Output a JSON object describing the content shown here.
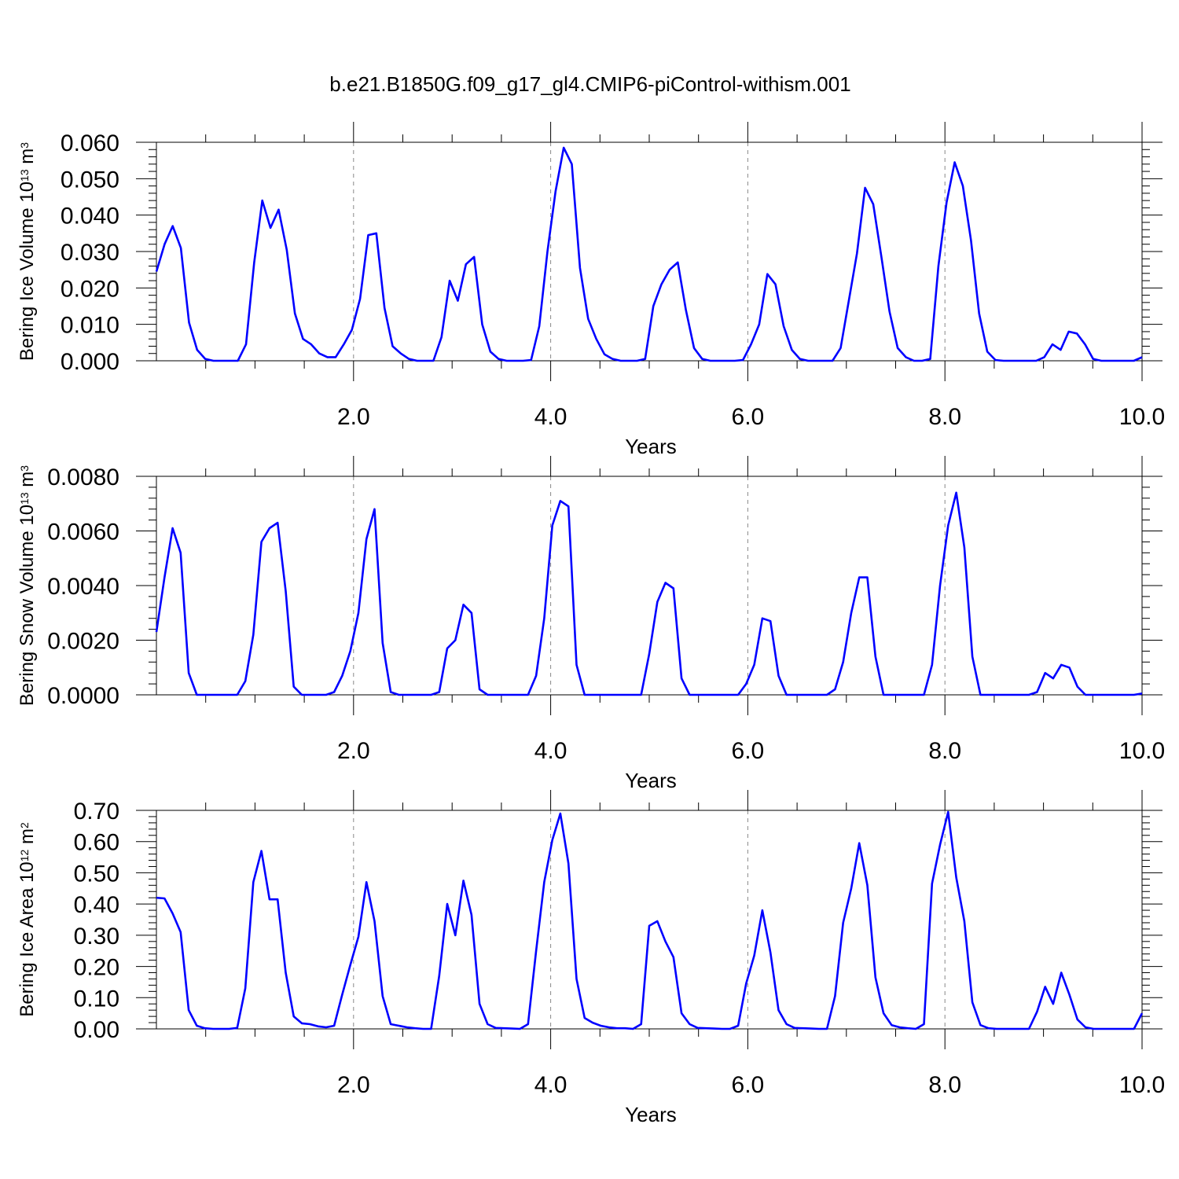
{
  "figure": {
    "title": "b.e21.B1850G.f09_g17_gl4.CMIP6-piControl-withism.001"
  },
  "colors": {
    "series": "#0000ff",
    "axis": "#000000",
    "gridline": "#888888"
  },
  "chart_data": [
    {
      "type": "line",
      "title": "",
      "xlabel": "Years",
      "ylabel": {
        "prefix": "Bering Ice Volume 10",
        "exp": "13",
        "unit": " m",
        "unit_exp": "3"
      },
      "xlim": [
        0.0,
        10.0
      ],
      "ylim": [
        0.0,
        0.06
      ],
      "xticks": [
        2.0,
        4.0,
        6.0,
        8.0,
        10.0
      ],
      "xtick_labels": [
        "2.0",
        "4.0",
        "6.0",
        "8.0",
        "10.0"
      ],
      "yticks": [
        0.0,
        0.01,
        0.02,
        0.03,
        0.04,
        0.05,
        0.06
      ],
      "ytick_labels": [
        "0.000",
        "0.010",
        "0.020",
        "0.030",
        "0.040",
        "0.050",
        "0.060"
      ],
      "grid_x": [
        2.0,
        4.0,
        6.0,
        8.0
      ],
      "series": [
        {
          "values": [
            0.0245,
            0.032,
            0.037,
            0.031,
            0.0105,
            0.003,
            0.0005,
            0.0,
            0.0,
            0.0,
            0.0,
            0.0045,
            0.027,
            0.044,
            0.0365,
            0.0415,
            0.0305,
            0.013,
            0.006,
            0.0045,
            0.002,
            0.001,
            0.001,
            0.0045,
            0.0085,
            0.017,
            0.0345,
            0.035,
            0.0145,
            0.004,
            0.002,
            0.0005,
            0.0,
            0.0,
            0.0,
            0.0065,
            0.022,
            0.0165,
            0.0265,
            0.0285,
            0.01,
            0.0025,
            0.0005,
            0.0,
            0.0,
            0.0,
            0.0002,
            0.0095,
            0.03,
            0.0465,
            0.0585,
            0.054,
            0.0255,
            0.0115,
            0.006,
            0.0018,
            0.0005,
            0.0,
            0.0,
            0.0,
            0.0005,
            0.015,
            0.021,
            0.025,
            0.027,
            0.014,
            0.0035,
            0.0005,
            0.0,
            0.0,
            0.0,
            0.0,
            0.0002,
            0.0045,
            0.01,
            0.0238,
            0.021,
            0.0095,
            0.003,
            0.0005,
            0.0,
            0.0,
            0.0,
            0.0,
            0.0035,
            0.0165,
            0.0295,
            0.0475,
            0.043,
            0.0285,
            0.0135,
            0.0035,
            0.001,
            0.0,
            0.0,
            0.0005,
            0.026,
            0.0435,
            0.0545,
            0.048,
            0.033,
            0.013,
            0.0025,
            0.0002,
            0.0,
            0.0,
            0.0,
            0.0,
            0.0,
            0.001,
            0.0045,
            0.003,
            0.008,
            0.0075,
            0.0045,
            0.0005,
            0.0,
            0.0,
            0.0,
            0.0,
            0.0,
            0.001
          ]
        }
      ]
    },
    {
      "type": "line",
      "title": "",
      "xlabel": "Years",
      "ylabel": {
        "prefix": "Bering Snow Volume 10",
        "exp": "13",
        "unit": " m",
        "unit_exp": "3"
      },
      "xlim": [
        0.0,
        10.0
      ],
      "ylim": [
        0.0,
        0.008
      ],
      "xticks": [
        2.0,
        4.0,
        6.0,
        8.0,
        10.0
      ],
      "xtick_labels": [
        "2.0",
        "4.0",
        "6.0",
        "8.0",
        "10.0"
      ],
      "yticks": [
        0.0,
        0.002,
        0.004,
        0.006,
        0.008
      ],
      "ytick_labels": [
        "0.0000",
        "0.0020",
        "0.0040",
        "0.0060",
        "0.0080"
      ],
      "grid_x": [
        2.0,
        4.0,
        6.0,
        8.0
      ],
      "series": [
        {
          "values": [
            0.0023,
            0.0043,
            0.0061,
            0.0052,
            0.0008,
            0.0,
            0.0,
            0.0,
            0.0,
            0.0,
            0.0,
            0.0005,
            0.0022,
            0.0056,
            0.0061,
            0.0063,
            0.0038,
            0.0003,
            0.0,
            0.0,
            0.0,
            0.0,
            0.0001,
            0.0007,
            0.0016,
            0.003,
            0.0057,
            0.0068,
            0.0019,
            0.0001,
            0.0,
            0.0,
            0.0,
            0.0,
            0.0,
            0.0001,
            0.0017,
            0.002,
            0.0033,
            0.003,
            0.0002,
            0.0,
            0.0,
            0.0,
            0.0,
            0.0,
            0.0,
            0.0007,
            0.0028,
            0.0062,
            0.0071,
            0.0069,
            0.0011,
            0.0,
            0.0,
            0.0,
            0.0,
            0.0,
            0.0,
            0.0,
            0.0,
            0.0015,
            0.0034,
            0.0041,
            0.0039,
            0.0006,
            0.0,
            0.0,
            0.0,
            0.0,
            0.0,
            0.0,
            0.0,
            0.0004,
            0.0011,
            0.0028,
            0.0027,
            0.0007,
            0.0,
            0.0,
            0.0,
            0.0,
            0.0,
            0.0,
            0.0002,
            0.0012,
            0.003,
            0.0043,
            0.0043,
            0.0014,
            0.0,
            0.0,
            0.0,
            0.0,
            0.0,
            0.0,
            0.0011,
            0.004,
            0.0062,
            0.0074,
            0.0054,
            0.0014,
            0.0,
            0.0,
            0.0,
            0.0,
            0.0,
            0.0,
            0.0,
            0.0001,
            0.0008,
            0.0006,
            0.0011,
            0.001,
            0.0003,
            0.0,
            0.0,
            0.0,
            0.0,
            0.0,
            0.0,
            0.0,
            5e-05
          ]
        }
      ]
    },
    {
      "type": "line",
      "title": "",
      "xlabel": "Years",
      "ylabel": {
        "prefix": "Bering Ice Area 10",
        "exp": "12",
        "unit": " m",
        "unit_exp": "2"
      },
      "xlim": [
        0.0,
        10.0
      ],
      "ylim": [
        0.0,
        0.7
      ],
      "xticks": [
        2.0,
        4.0,
        6.0,
        8.0,
        10.0
      ],
      "xtick_labels": [
        "2.0",
        "4.0",
        "6.0",
        "8.0",
        "10.0"
      ],
      "yticks": [
        0.0,
        0.1,
        0.2,
        0.3,
        0.4,
        0.5,
        0.6,
        0.7
      ],
      "ytick_labels": [
        "0.00",
        "0.10",
        "0.20",
        "0.30",
        "0.40",
        "0.50",
        "0.60",
        "0.70"
      ],
      "grid_x": [
        2.0,
        4.0,
        6.0,
        8.0
      ],
      "series": [
        {
          "values": [
            0.42,
            0.418,
            0.37,
            0.31,
            0.06,
            0.01,
            0.002,
            0.0,
            0.0,
            0.0,
            0.003,
            0.13,
            0.47,
            0.57,
            0.415,
            0.415,
            0.18,
            0.04,
            0.018,
            0.015,
            0.008,
            0.005,
            0.01,
            0.11,
            0.205,
            0.295,
            0.47,
            0.345,
            0.105,
            0.015,
            0.01,
            0.005,
            0.002,
            0.0,
            0.0,
            0.17,
            0.4,
            0.3,
            0.475,
            0.365,
            0.08,
            0.015,
            0.003,
            0.002,
            0.001,
            0.0,
            0.015,
            0.25,
            0.47,
            0.605,
            0.69,
            0.53,
            0.16,
            0.035,
            0.02,
            0.01,
            0.005,
            0.002,
            0.002,
            0.0,
            0.015,
            0.33,
            0.345,
            0.28,
            0.23,
            0.05,
            0.015,
            0.003,
            0.002,
            0.001,
            0.0,
            0.0,
            0.01,
            0.145,
            0.235,
            0.38,
            0.245,
            0.06,
            0.015,
            0.003,
            0.002,
            0.001,
            0.0,
            0.0,
            0.105,
            0.34,
            0.45,
            0.595,
            0.46,
            0.165,
            0.05,
            0.012,
            0.005,
            0.002,
            0.0,
            0.015,
            0.465,
            0.59,
            0.695,
            0.485,
            0.345,
            0.085,
            0.012,
            0.002,
            0.0,
            0.0,
            0.0,
            0.0,
            0.0,
            0.055,
            0.135,
            0.08,
            0.18,
            0.11,
            0.03,
            0.005,
            0.0,
            0.0,
            0.0,
            0.0,
            0.0,
            0.0,
            0.05
          ]
        }
      ]
    }
  ]
}
